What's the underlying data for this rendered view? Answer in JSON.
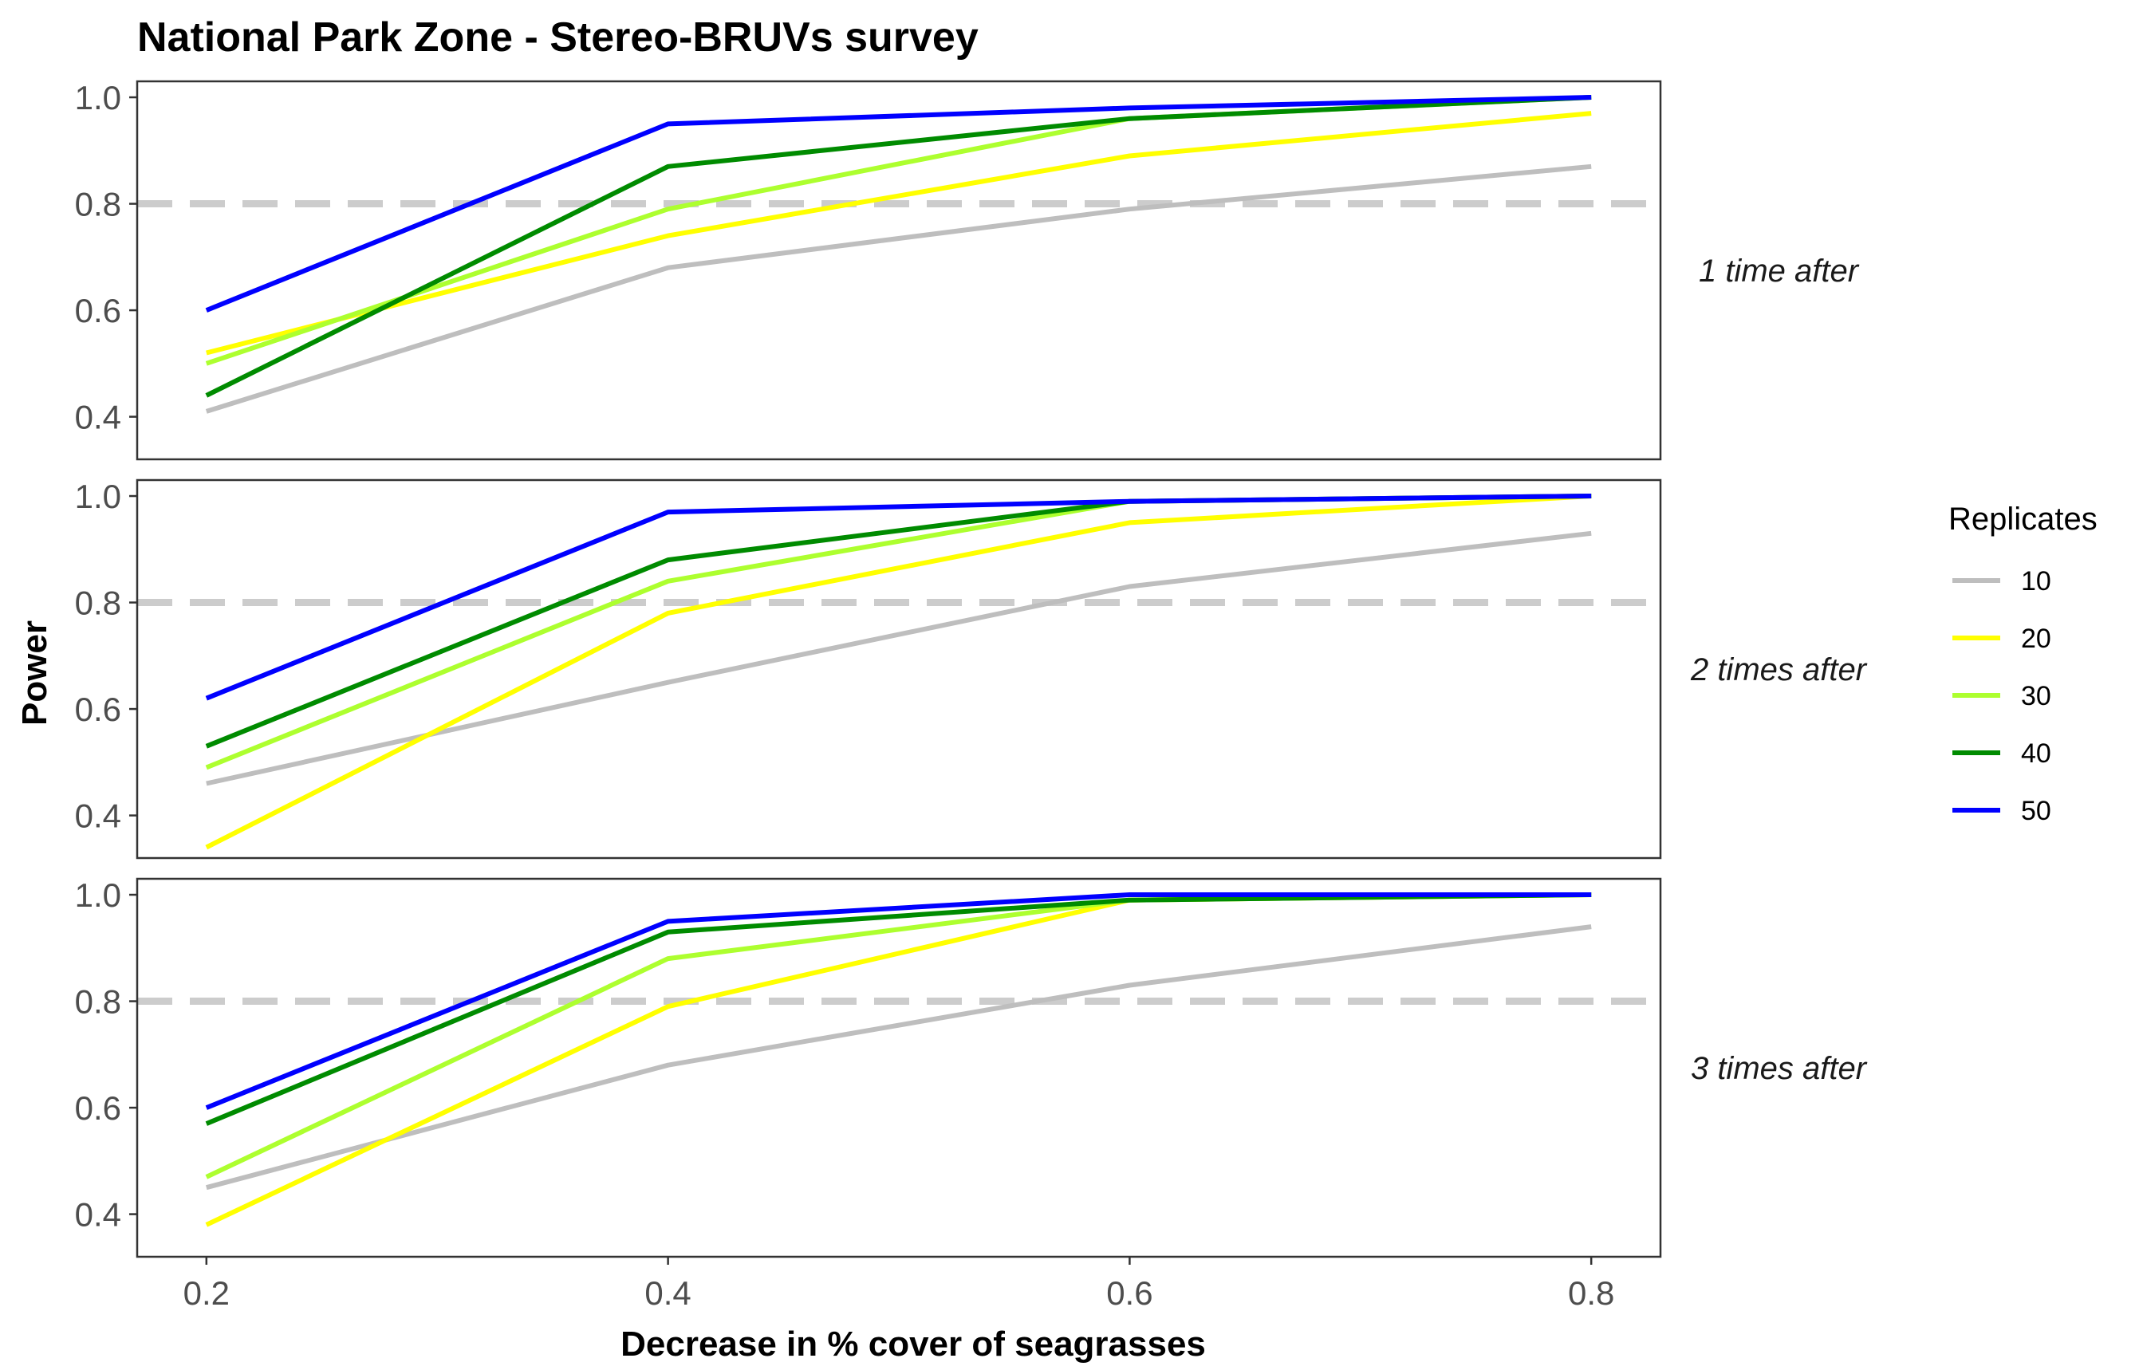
{
  "chart_data": {
    "type": "line",
    "title": "National Park Zone - Stereo-BRUVs survey",
    "xlabel": "Decrease in % cover of seagrasses",
    "ylabel": "Power",
    "x": [
      0.2,
      0.4,
      0.6,
      0.8
    ],
    "x_ticks": [
      "0.2",
      "0.4",
      "0.6",
      "0.8"
    ],
    "y_ticks": [
      "0.4",
      "0.6",
      "0.8",
      "1.0"
    ],
    "xlim": [
      0.17,
      0.83
    ],
    "ylim": [
      0.32,
      1.03
    ],
    "reference_line": {
      "y": 0.8,
      "color": "#cccccc",
      "style": "dashed"
    },
    "grid": false,
    "legend": {
      "title": "Replicates",
      "position": "right",
      "entries": [
        {
          "label": "10",
          "color": "#bebebe"
        },
        {
          "label": "20",
          "color": "#ffff00"
        },
        {
          "label": "30",
          "color": "#adff2f"
        },
        {
          "label": "40",
          "color": "#008b00"
        },
        {
          "label": "50",
          "color": "#0000ff"
        }
      ]
    },
    "facets": [
      {
        "label": "1 time after",
        "series": [
          {
            "name": "10",
            "values": [
              0.41,
              0.68,
              0.79,
              0.87
            ]
          },
          {
            "name": "20",
            "values": [
              0.52,
              0.74,
              0.89,
              0.97
            ]
          },
          {
            "name": "30",
            "values": [
              0.5,
              0.79,
              0.96,
              1.0
            ]
          },
          {
            "name": "40",
            "values": [
              0.44,
              0.87,
              0.96,
              1.0
            ]
          },
          {
            "name": "50",
            "values": [
              0.6,
              0.95,
              0.98,
              1.0
            ]
          }
        ]
      },
      {
        "label": "2 times after",
        "series": [
          {
            "name": "10",
            "values": [
              0.46,
              0.65,
              0.83,
              0.93
            ]
          },
          {
            "name": "20",
            "values": [
              0.34,
              0.78,
              0.95,
              1.0
            ]
          },
          {
            "name": "30",
            "values": [
              0.49,
              0.84,
              0.99,
              1.0
            ]
          },
          {
            "name": "40",
            "values": [
              0.53,
              0.88,
              0.99,
              1.0
            ]
          },
          {
            "name": "50",
            "values": [
              0.62,
              0.97,
              0.99,
              1.0
            ]
          }
        ]
      },
      {
        "label": "3 times after",
        "series": [
          {
            "name": "10",
            "values": [
              0.45,
              0.68,
              0.83,
              0.94
            ]
          },
          {
            "name": "20",
            "values": [
              0.38,
              0.79,
              0.99,
              1.0
            ]
          },
          {
            "name": "30",
            "values": [
              0.47,
              0.88,
              0.99,
              1.0
            ]
          },
          {
            "name": "40",
            "values": [
              0.57,
              0.93,
              0.99,
              1.0
            ]
          },
          {
            "name": "50",
            "values": [
              0.6,
              0.95,
              1.0,
              1.0
            ]
          }
        ]
      }
    ]
  }
}
